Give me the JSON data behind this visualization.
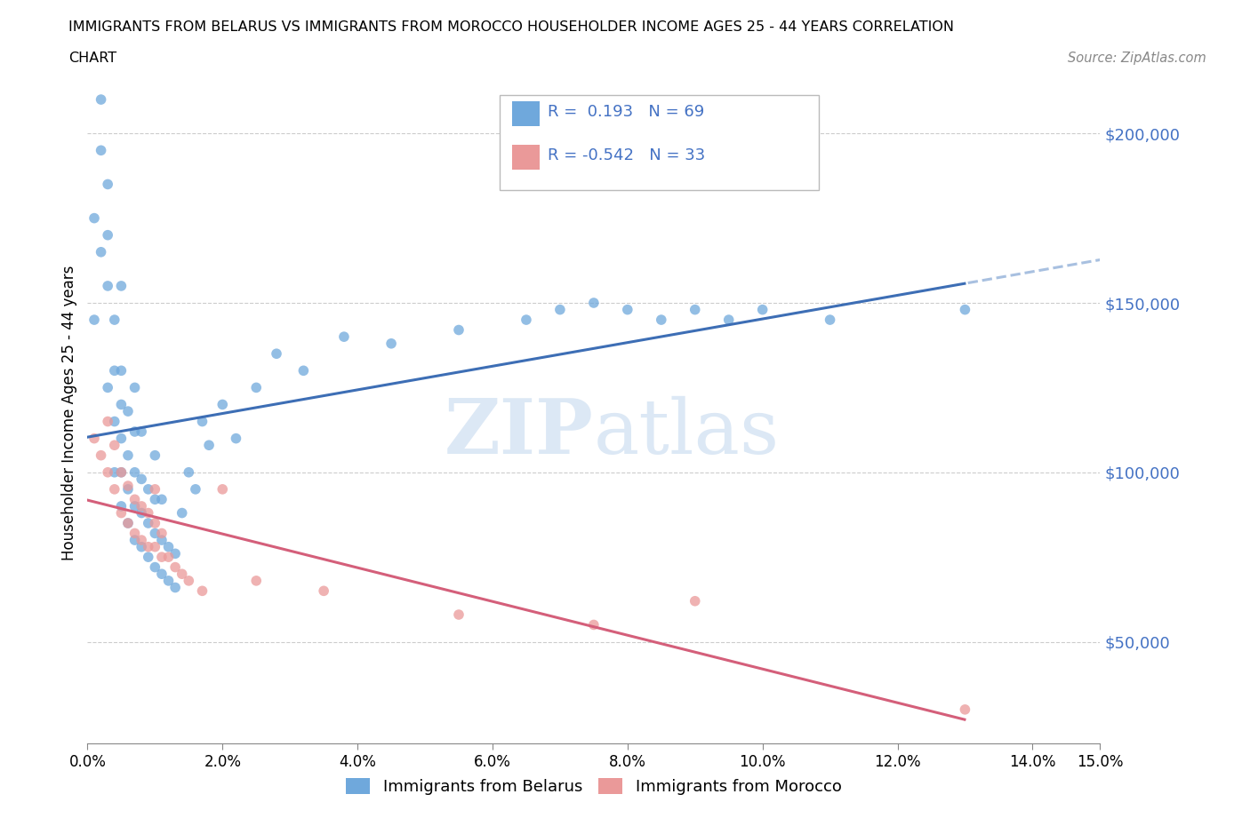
{
  "title_line1": "IMMIGRANTS FROM BELARUS VS IMMIGRANTS FROM MOROCCO HOUSEHOLDER INCOME AGES 25 - 44 YEARS CORRELATION",
  "title_line2": "CHART",
  "source_text": "Source: ZipAtlas.com",
  "ylabel": "Householder Income Ages 25 - 44 years",
  "xmin": 0.0,
  "xmax": 0.15,
  "ymin": 20000,
  "ymax": 215000,
  "yticks": [
    50000,
    100000,
    150000,
    200000
  ],
  "ytick_labels": [
    "$50,000",
    "$100,000",
    "$150,000",
    "$200,000"
  ],
  "xticks": [
    0.0,
    0.02,
    0.04,
    0.06,
    0.08,
    0.1,
    0.12,
    0.14
  ],
  "xtick_labels": [
    "0.0%",
    "2.0%",
    "4.0%",
    "6.0%",
    "8.0%",
    "10.0%",
    "12.0%",
    "14.0%"
  ],
  "belarus_color": "#6fa8dc",
  "morocco_color": "#ea9999",
  "belarus_R": 0.193,
  "belarus_N": 69,
  "morocco_R": -0.542,
  "morocco_N": 33,
  "trend_color_blue": "#3d6eb5",
  "trend_color_pink": "#d45f7a",
  "trend_dashed_blue": "#a8c0e0",
  "watermark_color": "#dce8f5",
  "legend_color": "#4472c4",
  "belarus_x": [
    0.001,
    0.001,
    0.002,
    0.002,
    0.002,
    0.003,
    0.003,
    0.003,
    0.003,
    0.004,
    0.004,
    0.004,
    0.004,
    0.005,
    0.005,
    0.005,
    0.005,
    0.005,
    0.005,
    0.006,
    0.006,
    0.006,
    0.006,
    0.007,
    0.007,
    0.007,
    0.007,
    0.007,
    0.008,
    0.008,
    0.008,
    0.008,
    0.009,
    0.009,
    0.009,
    0.01,
    0.01,
    0.01,
    0.01,
    0.011,
    0.011,
    0.011,
    0.012,
    0.012,
    0.013,
    0.013,
    0.014,
    0.015,
    0.016,
    0.017,
    0.018,
    0.02,
    0.022,
    0.025,
    0.028,
    0.032,
    0.038,
    0.045,
    0.055,
    0.065,
    0.07,
    0.075,
    0.08,
    0.085,
    0.09,
    0.095,
    0.1,
    0.11,
    0.13
  ],
  "belarus_y": [
    145000,
    175000,
    165000,
    195000,
    210000,
    155000,
    170000,
    185000,
    125000,
    100000,
    115000,
    130000,
    145000,
    90000,
    100000,
    110000,
    120000,
    130000,
    155000,
    85000,
    95000,
    105000,
    118000,
    80000,
    90000,
    100000,
    112000,
    125000,
    78000,
    88000,
    98000,
    112000,
    75000,
    85000,
    95000,
    72000,
    82000,
    92000,
    105000,
    70000,
    80000,
    92000,
    68000,
    78000,
    66000,
    76000,
    88000,
    100000,
    95000,
    115000,
    108000,
    120000,
    110000,
    125000,
    135000,
    130000,
    140000,
    138000,
    142000,
    145000,
    148000,
    150000,
    148000,
    145000,
    148000,
    145000,
    148000,
    145000,
    148000
  ],
  "morocco_x": [
    0.001,
    0.002,
    0.003,
    0.003,
    0.004,
    0.004,
    0.005,
    0.005,
    0.006,
    0.006,
    0.007,
    0.007,
    0.008,
    0.008,
    0.009,
    0.009,
    0.01,
    0.01,
    0.01,
    0.011,
    0.011,
    0.012,
    0.013,
    0.014,
    0.015,
    0.017,
    0.02,
    0.025,
    0.035,
    0.055,
    0.075,
    0.09,
    0.13
  ],
  "morocco_y": [
    110000,
    105000,
    100000,
    115000,
    95000,
    108000,
    88000,
    100000,
    85000,
    96000,
    82000,
    92000,
    80000,
    90000,
    78000,
    88000,
    78000,
    85000,
    95000,
    75000,
    82000,
    75000,
    72000,
    70000,
    68000,
    65000,
    95000,
    68000,
    65000,
    58000,
    55000,
    62000,
    30000
  ]
}
